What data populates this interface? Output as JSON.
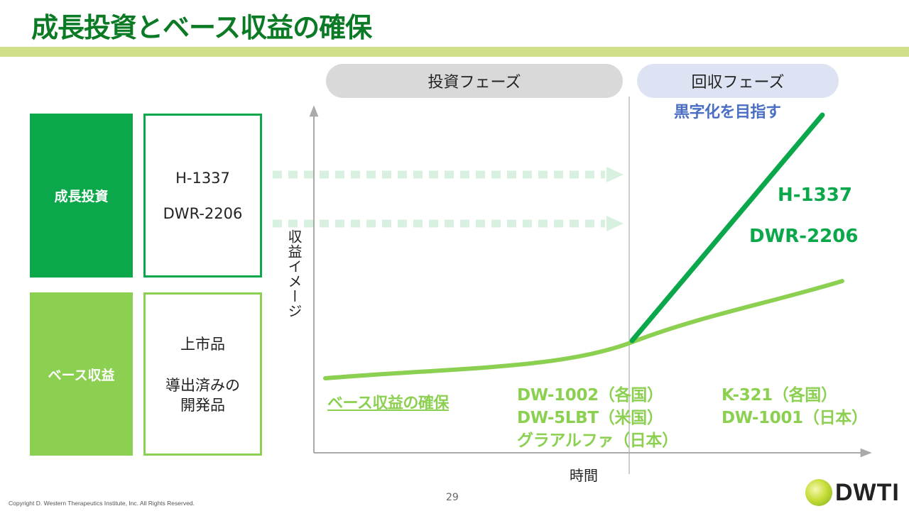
{
  "header": {
    "title": "成長投資とベース収益の確保"
  },
  "phases": {
    "invest": "投資フェーズ",
    "recover": "回収フェーズ"
  },
  "profit_goal": "黒字化を目指す",
  "categories": {
    "growth": {
      "label": "成長投資",
      "items": [
        "H-1337",
        "DWR-2206"
      ]
    },
    "base": {
      "label": "ベース収益",
      "items": [
        "上市品",
        "導出済みの",
        "開発品"
      ]
    }
  },
  "axes": {
    "y_label": "収益イメージ",
    "x_label": "時間"
  },
  "series_labels": {
    "h1337": "H-1337",
    "dwr2206": "DWR-2206"
  },
  "base_secure": "ベース収益の確保",
  "products": {
    "investment_phase": [
      "DW-1002（各国）",
      "DW-5LBT（米国）",
      "グラアルファ（日本）"
    ],
    "recovery_phase": [
      "K-321（各国）",
      "DW-1001（日本）"
    ]
  },
  "colors": {
    "title_green": "#0a7a25",
    "growth_green": "#0aa84a",
    "base_green": "#8cd052",
    "arrow_pale": "#d8f0e0",
    "goal_blue": "#4a6ec4",
    "title_rule": "#cfe08a",
    "invest_pill": "#d9d9d9",
    "recover_pill": "#dde3f3"
  },
  "footer": {
    "page_number": "29",
    "copyright": "Copyright D. Western Therapeutics Institute, Inc. All Rights Reserved.",
    "logo_text": "DWTI",
    "logo_icon": "sphere-logo-icon"
  }
}
